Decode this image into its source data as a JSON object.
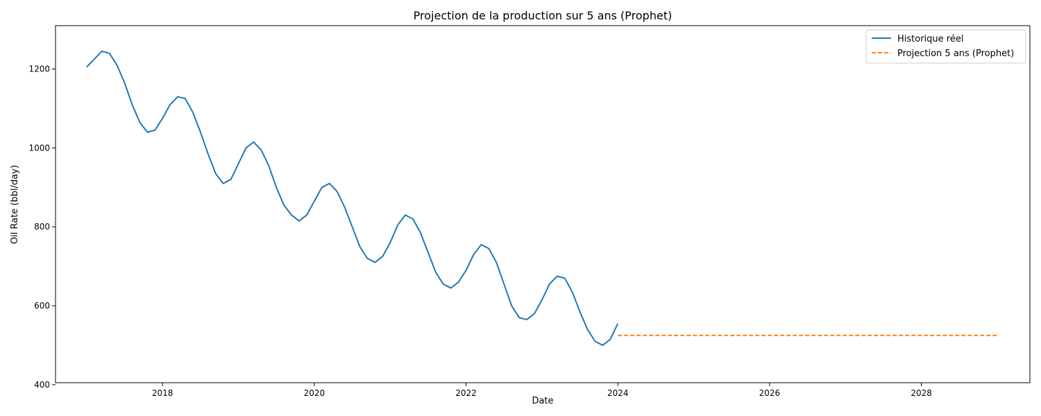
{
  "chart_data": {
    "type": "line",
    "title": "Projection de la production sur 5 ans (Prophet)",
    "xlabel": "Date",
    "ylabel": "Oil Rate (bbl/day)",
    "xlim": [
      2016.59,
      2029.43
    ],
    "ylim": [
      405,
      1310
    ],
    "xticks": [
      2018,
      2020,
      2022,
      2024,
      2026,
      2028
    ],
    "xtick_labels": [
      "2018",
      "2020",
      "2022",
      "2024",
      "2026",
      "2028"
    ],
    "yticks": [
      400,
      600,
      800,
      1000,
      1200
    ],
    "ytick_labels": [
      "400",
      "600",
      "800",
      "1000",
      "1200"
    ],
    "grid": false,
    "legend_position": "top-right",
    "series": [
      {
        "name": "Historique réel",
        "color": "#1f77b4",
        "style": "solid",
        "x": [
          2017.0,
          2017.1,
          2017.2,
          2017.3,
          2017.4,
          2017.5,
          2017.6,
          2017.7,
          2017.8,
          2017.9,
          2018.0,
          2018.1,
          2018.2,
          2018.3,
          2018.4,
          2018.5,
          2018.6,
          2018.7,
          2018.8,
          2018.9,
          2019.0,
          2019.1,
          2019.2,
          2019.3,
          2019.4,
          2019.5,
          2019.6,
          2019.7,
          2019.8,
          2019.9,
          2020.0,
          2020.1,
          2020.2,
          2020.3,
          2020.4,
          2020.5,
          2020.6,
          2020.7,
          2020.8,
          2020.9,
          2021.0,
          2021.1,
          2021.2,
          2021.3,
          2021.4,
          2021.5,
          2021.6,
          2021.7,
          2021.8,
          2021.9,
          2022.0,
          2022.1,
          2022.2,
          2022.3,
          2022.4,
          2022.5,
          2022.6,
          2022.7,
          2022.8,
          2022.9,
          2023.0,
          2023.1,
          2023.2,
          2023.3,
          2023.4,
          2023.5,
          2023.6,
          2023.7,
          2023.8,
          2023.9,
          2024.0
        ],
        "values": [
          1205,
          1225,
          1245,
          1240,
          1210,
          1165,
          1110,
          1065,
          1040,
          1045,
          1075,
          1110,
          1130,
          1125,
          1090,
          1040,
          985,
          935,
          910,
          920,
          960,
          1000,
          1015,
          995,
          955,
          900,
          855,
          830,
          815,
          830,
          865,
          900,
          910,
          890,
          850,
          800,
          750,
          720,
          710,
          725,
          760,
          805,
          830,
          820,
          785,
          735,
          685,
          655,
          645,
          660,
          690,
          730,
          755,
          745,
          710,
          655,
          600,
          570,
          565,
          580,
          615,
          655,
          675,
          670,
          635,
          585,
          540,
          510,
          500,
          515,
          555
        ]
      },
      {
        "name": "Projection 5 ans (Prophet)",
        "color": "#ff7f0e",
        "style": "dashed",
        "x": [
          2024.0,
          2029.0
        ],
        "values": [
          525,
          525
        ]
      }
    ]
  }
}
